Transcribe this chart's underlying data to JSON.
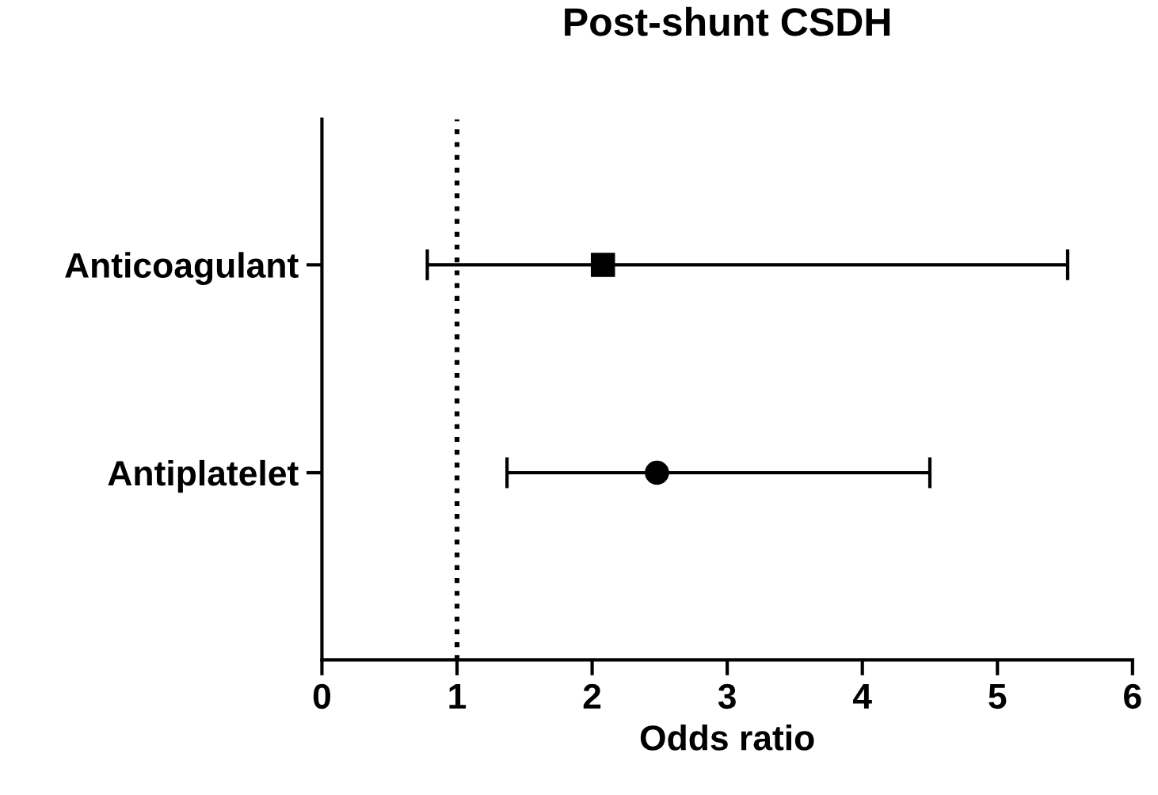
{
  "chart_data": {
    "type": "scatter",
    "orientation": "horizontal",
    "title": "Post-shunt CSDH",
    "xlabel": "Odds ratio",
    "categories": [
      "Anticoagulant",
      "Antiplatelet"
    ],
    "series": [
      {
        "color": "#000000",
        "marker": "square",
        "values": [
          2.08,
          null
        ],
        "errors": [
          [
            0.78,
            5.52
          ],
          null
        ]
      },
      {
        "color": "#000000",
        "marker": "circle",
        "values": [
          null,
          2.48
        ],
        "errors": [
          null,
          [
            1.37,
            4.5
          ]
        ]
      }
    ],
    "xlim": [
      0,
      6
    ],
    "xticks": [
      0,
      1,
      2,
      3,
      4,
      5,
      6
    ],
    "ref_lines": [
      {
        "axis": "x",
        "value": 1,
        "line_style": "dotted",
        "color": "#000000"
      }
    ],
    "grid": false,
    "legend": false
  }
}
